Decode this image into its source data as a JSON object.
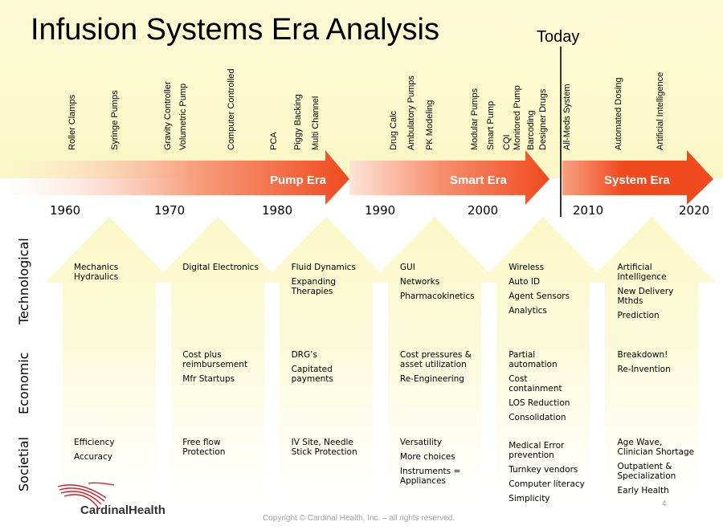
{
  "title": "Infusion Systems Era Analysis",
  "today": "Today",
  "milestones": [
    {
      "text": "Roller Clamps",
      "year": 1961.5
    },
    {
      "text": "Syringe Pumps",
      "year": 1965.5
    },
    {
      "text": "Gravity Controller",
      "year": 1970.5
    },
    {
      "text": "Volumetric Pump",
      "year": 1972
    },
    {
      "text": "Computer Controlled",
      "year": 1976.5
    },
    {
      "text": "PCA",
      "year": 1980.5
    },
    {
      "text": "Piggy Backing",
      "year": 1982.8
    },
    {
      "text": "Multi Channel",
      "year": 1984.5
    },
    {
      "text": "Drug Calc",
      "year": 1991.8
    },
    {
      "text": "Ambulatory Pumps",
      "year": 1993.5
    },
    {
      "text": "PK Modeling",
      "year": 1995.2
    },
    {
      "text": "Modular Pumps",
      "year": 1999.5
    },
    {
      "text": "Smart Pump",
      "year": 2001
    },
    {
      "text": "CQI",
      "year": 2002.5
    },
    {
      "text": "Monitored Pump",
      "year": 2003.5
    },
    {
      "text": "Barcoding",
      "year": 2004.8
    },
    {
      "text": "Designer Drugs",
      "year": 2005.9
    },
    {
      "text": "All-Meds System",
      "year": 2008.2
    },
    {
      "text": "Automated Dosing",
      "year": 2013
    },
    {
      "text": "Artificial Intelligence",
      "year": 2017
    }
  ],
  "eras": [
    {
      "label": "Pump Era",
      "color": "#f04a1e"
    },
    {
      "label": "Smart Era",
      "color": "#f04a1e"
    },
    {
      "label": "System Era",
      "color": "#f04a1e"
    }
  ],
  "years": [
    "1960",
    "1970",
    "1980",
    "1990",
    "2000",
    "2010",
    "2020"
  ],
  "row_labels": [
    "Technological",
    "Economic",
    "Societial"
  ],
  "columns": [
    {
      "technological": [
        "Mechanics\nHydraulics"
      ],
      "economic": [],
      "societal": [
        "Efficiency",
        "Accuracy"
      ]
    },
    {
      "technological": [
        "Digital Electronics"
      ],
      "economic": [
        "Cost plus\nreimbursement",
        "Mfr Startups"
      ],
      "societal": [
        "Free flow\nProtection"
      ]
    },
    {
      "technological": [
        "Fluid Dynamics",
        "Expanding\nTherapies"
      ],
      "economic": [
        "DRG’s",
        "Capitated\npayments"
      ],
      "societal": [
        "IV Site, Needle\nStick Protection"
      ]
    },
    {
      "technological": [
        "GUI",
        "Networks",
        "Pharmacokinetics"
      ],
      "economic": [
        "Cost pressures &\nasset utilization",
        "Re-Engineering"
      ],
      "societal": [
        "Versatility",
        "More choices",
        "Instruments =\nAppliances"
      ]
    },
    {
      "technological": [
        "Wireless",
        "Auto ID",
        "Agent Sensors",
        "Analytics"
      ],
      "economic": [
        "Partial\nautomation",
        "Cost\ncontainment",
        "LOS Reduction",
        "Consolidation"
      ],
      "societal": [
        "Medical Error\nprevention",
        "Turnkey vendors",
        "Computer literacy",
        "Simplicity"
      ]
    },
    {
      "technological": [
        "Artificial\nIntelligence",
        "New Delivery\nMthds",
        "Prediction"
      ],
      "economic": [
        "Breakdown!",
        "Re-Invention"
      ],
      "societal": [
        "Age Wave,\nClinician Shortage",
        "Outpatient &\nSpecialization",
        "Early Health"
      ]
    }
  ],
  "logo": "CardinalHealth",
  "copyright": "Copyright © Cardinal Health, Inc. – all rights reserved.",
  "page_number": "4",
  "colors": {
    "band": "#fbf8c6",
    "arrow_pale": "#fbf8c6",
    "era_orange": "#f04a1e",
    "logo_red": "#cc2229"
  }
}
